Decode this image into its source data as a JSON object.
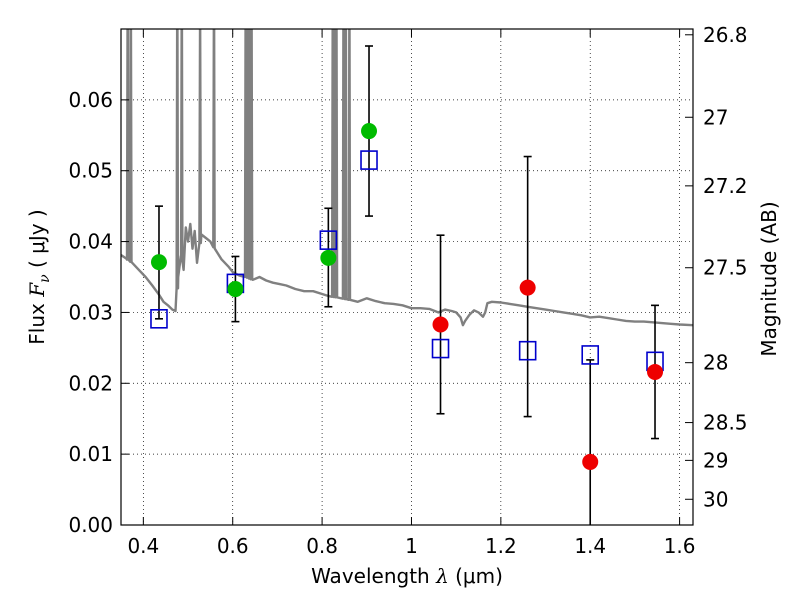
{
  "chart_data": {
    "type": "scatter",
    "xlabel": {
      "prefix": "Wavelength  ",
      "symbol": "λ",
      "unit": " (μm)"
    },
    "ylabel": {
      "prefix": "Flux  ",
      "symbol": "F",
      "sub": "ν",
      "unit": "  ( μJy )"
    },
    "y2label": "Magnitude (AB)",
    "xlim": [
      0.35,
      1.63
    ],
    "ylim": [
      0.0,
      0.07
    ],
    "x_ticks": [
      0.4,
      0.6,
      0.8,
      1.0,
      1.2,
      1.4,
      1.6
    ],
    "x_tick_labels": [
      "0.4",
      "0.6",
      "0.8",
      "1",
      "1.2",
      "1.4",
      "1.6"
    ],
    "y_ticks": [
      0.0,
      0.01,
      0.02,
      0.03,
      0.04,
      0.05,
      0.06
    ],
    "y_tick_labels": [
      "0.00",
      "0.01",
      "0.02",
      "0.03",
      "0.04",
      "0.05",
      "0.06"
    ],
    "y2_ticks": [
      {
        "mag": 26.8,
        "label": "26.8"
      },
      {
        "mag": 27.0,
        "label": "27"
      },
      {
        "mag": 27.2,
        "label": "27.2"
      },
      {
        "mag": 27.5,
        "label": "27.5"
      },
      {
        "mag": 28.0,
        "label": "28"
      },
      {
        "mag": 28.5,
        "label": "28.5"
      },
      {
        "mag": 29.0,
        "label": "29"
      },
      {
        "mag": 30.0,
        "label": "30"
      }
    ],
    "grid": true,
    "colors": {
      "detected": "#00bb00",
      "nondetected": "#ee0000",
      "model_points": "#0000cc",
      "model_spectrum": "#808080",
      "errorbar": "#000000"
    },
    "observed": [
      {
        "x": 0.435,
        "y": 0.0371,
        "yerr_lo": 0.0291,
        "yerr_hi": 0.045,
        "status": "detected"
      },
      {
        "x": 0.606,
        "y": 0.0333,
        "yerr_lo": 0.0287,
        "yerr_hi": 0.0379,
        "status": "detected"
      },
      {
        "x": 0.814,
        "y": 0.0377,
        "yerr_lo": 0.0308,
        "yerr_hi": 0.0447,
        "status": "detected"
      },
      {
        "x": 0.905,
        "y": 0.0556,
        "yerr_lo": 0.0436,
        "yerr_hi": 0.0676,
        "status": "detected"
      },
      {
        "x": 1.065,
        "y": 0.0283,
        "yerr_lo": 0.0157,
        "yerr_hi": 0.0409,
        "status": "nondetected"
      },
      {
        "x": 1.26,
        "y": 0.0335,
        "yerr_lo": 0.0153,
        "yerr_hi": 0.052,
        "status": "nondetected"
      },
      {
        "x": 1.4,
        "y": 0.0089,
        "yerr_lo": 0.0,
        "yerr_hi": 0.0233,
        "status": "nondetected"
      },
      {
        "x": 1.545,
        "y": 0.0216,
        "yerr_lo": 0.0122,
        "yerr_hi": 0.031,
        "status": "nondetected"
      }
    ],
    "model_points": [
      {
        "x": 0.435,
        "y": 0.0291
      },
      {
        "x": 0.606,
        "y": 0.0341
      },
      {
        "x": 0.814,
        "y": 0.0402
      },
      {
        "x": 0.905,
        "y": 0.0515
      },
      {
        "x": 1.065,
        "y": 0.0249
      },
      {
        "x": 1.26,
        "y": 0.0246
      },
      {
        "x": 1.4,
        "y": 0.024
      },
      {
        "x": 1.545,
        "y": 0.0231
      }
    ],
    "model_spectrum": [
      [
        0.35,
        0.0381
      ],
      [
        0.362,
        0.0376
      ],
      [
        0.375,
        0.037
      ],
      [
        0.39,
        0.036
      ],
      [
        0.405,
        0.035
      ],
      [
        0.42,
        0.0338
      ],
      [
        0.435,
        0.0325
      ],
      [
        0.445,
        0.0315
      ],
      [
        0.455,
        0.031
      ],
      [
        0.465,
        0.0304
      ],
      [
        0.472,
        0.0302
      ],
      [
        0.478,
        0.035
      ],
      [
        0.484,
        0.038
      ],
      [
        0.49,
        0.036
      ],
      [
        0.495,
        0.042
      ],
      [
        0.5,
        0.04
      ],
      [
        0.505,
        0.0425
      ],
      [
        0.51,
        0.039
      ],
      [
        0.515,
        0.0415
      ],
      [
        0.52,
        0.037
      ],
      [
        0.53,
        0.041
      ],
      [
        0.54,
        0.0405
      ],
      [
        0.55,
        0.04
      ],
      [
        0.56,
        0.039
      ],
      [
        0.575,
        0.0375
      ],
      [
        0.59,
        0.0365
      ],
      [
        0.6,
        0.0357
      ],
      [
        0.615,
        0.0352
      ],
      [
        0.63,
        0.035
      ],
      [
        0.645,
        0.0346
      ],
      [
        0.66,
        0.035
      ],
      [
        0.675,
        0.0345
      ],
      [
        0.69,
        0.0342
      ],
      [
        0.705,
        0.034
      ],
      [
        0.72,
        0.0338
      ],
      [
        0.74,
        0.0333
      ],
      [
        0.76,
        0.033
      ],
      [
        0.78,
        0.033
      ],
      [
        0.8,
        0.0326
      ],
      [
        0.815,
        0.0323
      ],
      [
        0.835,
        0.0321
      ],
      [
        0.86,
        0.0318
      ],
      [
        0.88,
        0.0315
      ],
      [
        0.9,
        0.032
      ],
      [
        0.92,
        0.0316
      ],
      [
        0.94,
        0.0313
      ],
      [
        0.96,
        0.0312
      ],
      [
        0.98,
        0.031
      ],
      [
        1.0,
        0.0306
      ],
      [
        1.02,
        0.0306
      ],
      [
        1.04,
        0.0305
      ],
      [
        1.06,
        0.03
      ],
      [
        1.075,
        0.0304
      ],
      [
        1.09,
        0.0302
      ],
      [
        1.1,
        0.03
      ],
      [
        1.11,
        0.0293
      ],
      [
        1.115,
        0.0282
      ],
      [
        1.12,
        0.0288
      ],
      [
        1.13,
        0.0297
      ],
      [
        1.14,
        0.0303
      ],
      [
        1.15,
        0.03
      ],
      [
        1.16,
        0.0294
      ],
      [
        1.165,
        0.03
      ],
      [
        1.17,
        0.0313
      ],
      [
        1.18,
        0.0315
      ],
      [
        1.2,
        0.0314
      ],
      [
        1.22,
        0.0312
      ],
      [
        1.24,
        0.031
      ],
      [
        1.26,
        0.0308
      ],
      [
        1.28,
        0.0306
      ],
      [
        1.3,
        0.0304
      ],
      [
        1.32,
        0.0302
      ],
      [
        1.34,
        0.03
      ],
      [
        1.36,
        0.0298
      ],
      [
        1.38,
        0.0296
      ],
      [
        1.4,
        0.0293
      ],
      [
        1.42,
        0.0294
      ],
      [
        1.44,
        0.0292
      ],
      [
        1.46,
        0.029
      ],
      [
        1.48,
        0.0288
      ],
      [
        1.5,
        0.0287
      ],
      [
        1.52,
        0.0287
      ],
      [
        1.54,
        0.0286
      ],
      [
        1.56,
        0.0285
      ],
      [
        1.58,
        0.0284
      ],
      [
        1.6,
        0.0283
      ],
      [
        1.63,
        0.0282
      ]
    ],
    "emission_lines": [
      {
        "x": 0.365,
        "peak": 0.07
      },
      {
        "x": 0.372,
        "peak": 0.07
      },
      {
        "x": 0.476,
        "peak": 0.07
      },
      {
        "x": 0.486,
        "peak": 0.07
      },
      {
        "x": 0.527,
        "peak": 0.0635
      },
      {
        "x": 0.558,
        "peak": 0.07
      },
      {
        "x": 0.629,
        "peak": 0.07
      },
      {
        "x": 0.633,
        "peak": 0.07
      },
      {
        "x": 0.638,
        "peak": 0.07
      },
      {
        "x": 0.642,
        "peak": 0.07
      },
      {
        "x": 0.824,
        "peak": 0.07
      },
      {
        "x": 0.828,
        "peak": 0.07
      },
      {
        "x": 0.832,
        "peak": 0.07
      },
      {
        "x": 0.848,
        "peak": 0.07
      },
      {
        "x": 0.853,
        "peak": 0.07
      },
      {
        "x": 0.861,
        "peak": 0.07
      }
    ]
  }
}
